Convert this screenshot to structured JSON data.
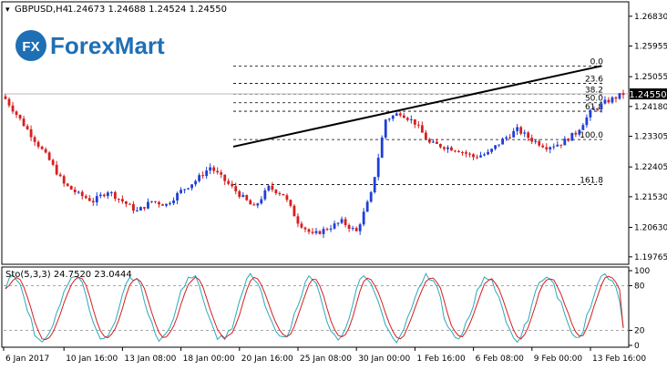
{
  "header": {
    "symbol": "GBPUSD,H4",
    "ohlc": "1.24673 1.24688 1.24524 1.24550"
  },
  "logo": {
    "mark": "FX",
    "brand": "ForexMart",
    "brand_color": "#1f6fb4"
  },
  "colors": {
    "bull": "#1f3fd6",
    "bear": "#d61f1f",
    "stoch_main": "#2aa9b8",
    "stoch_signal": "#d61f1f",
    "trendline": "#000000",
    "price_tag_bg": "#000000",
    "price_tag_text": "#ffffff"
  },
  "chart_data": [
    {
      "type": "candlestick",
      "title": "GBPUSD,H4",
      "ylim": [
        1.196,
        1.272
      ],
      "y_ticks": [
        1.19765,
        1.2063,
        1.2153,
        1.22405,
        1.23305,
        1.2418,
        1.25055,
        1.25955,
        1.2683
      ],
      "y_tick_labels": [
        "1.19765",
        "1.20630",
        "1.21530",
        "1.22405",
        "1.23305",
        "1.24180",
        "1.25055",
        "1.25955",
        "1.26830"
      ],
      "x_tick_labels": [
        "6 Jan 2017",
        "10 Jan 16:00",
        "13 Jan 08:00",
        "18 Jan 00:00",
        "20 Jan 16:00",
        "25 Jan 08:00",
        "30 Jan 00:00",
        "1 Feb 16:00",
        "6 Feb 08:00",
        "9 Feb 00:00",
        "13 Feb 16:00"
      ],
      "bar_count": 170,
      "last_price": "1.24550",
      "close_path": [
        [
          0,
          1.244
        ],
        [
          4,
          1.238
        ],
        [
          8,
          1.232
        ],
        [
          12,
          1.226
        ],
        [
          16,
          1.219
        ],
        [
          20,
          1.216
        ],
        [
          24,
          1.214
        ],
        [
          28,
          1.217
        ],
        [
          32,
          1.214
        ],
        [
          36,
          1.211
        ],
        [
          40,
          1.214
        ],
        [
          44,
          1.213
        ],
        [
          48,
          1.217
        ],
        [
          52,
          1.22
        ],
        [
          56,
          1.224
        ],
        [
          60,
          1.22
        ],
        [
          64,
          1.216
        ],
        [
          68,
          1.212
        ],
        [
          72,
          1.218
        ],
        [
          76,
          1.216
        ],
        [
          80,
          1.208
        ],
        [
          84,
          1.204
        ],
        [
          88,
          1.206
        ],
        [
          92,
          1.208
        ],
        [
          96,
          1.205
        ],
        [
          100,
          1.216
        ],
        [
          104,
          1.238
        ],
        [
          108,
          1.24
        ],
        [
          112,
          1.237
        ],
        [
          116,
          1.231
        ],
        [
          120,
          1.23
        ],
        [
          124,
          1.229
        ],
        [
          128,
          1.227
        ],
        [
          132,
          1.228
        ],
        [
          136,
          1.232
        ],
        [
          140,
          1.235
        ],
        [
          144,
          1.232
        ],
        [
          148,
          1.23
        ],
        [
          152,
          1.231
        ],
        [
          156,
          1.234
        ],
        [
          160,
          1.24
        ],
        [
          164,
          1.243
        ],
        [
          169,
          1.2455
        ]
      ],
      "fibonacci": {
        "levels": [
          {
            "label": "0.0",
            "price": 1.2537
          },
          {
            "label": "23.6",
            "price": 1.2486
          },
          {
            "label": "38.2",
            "price": 1.2454
          },
          {
            "label": "50.0",
            "price": 1.2429
          },
          {
            "label": "61.8",
            "price": 1.2404
          },
          {
            "label": "100.0",
            "price": 1.2321
          },
          {
            "label": "161.8",
            "price": 1.2189
          }
        ]
      },
      "trendline": {
        "from": {
          "date": "20 Jan 16:00",
          "price": 1.23
        },
        "to": {
          "date": "14 Feb 12:00",
          "price": 1.2537
        }
      }
    },
    {
      "type": "line",
      "title": "Sto(5,3,3) 24.7520 23.0444",
      "ylim": [
        0,
        100
      ],
      "y_ticks": [
        0,
        20,
        80,
        100
      ],
      "levels": [
        20,
        80
      ],
      "series": [
        {
          "name": "Main",
          "current": 24.752
        },
        {
          "name": "Signal",
          "current": 23.0444
        }
      ]
    }
  ]
}
